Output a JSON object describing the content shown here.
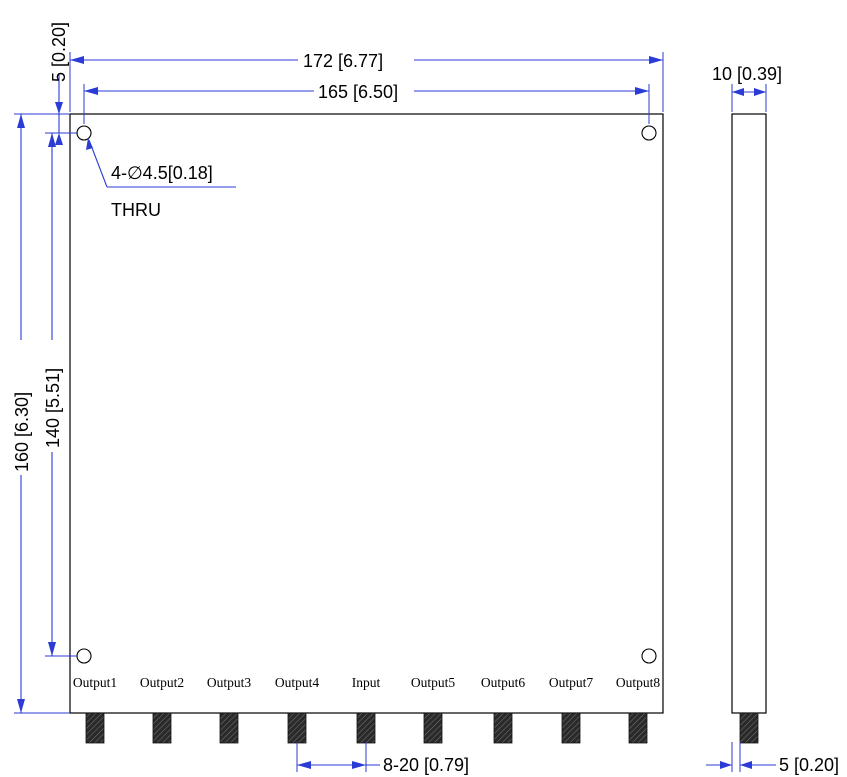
{
  "dimensions": {
    "overall_width": "172 [6.77]",
    "hole_spacing_width": "165 [6.50]",
    "edge_to_hole": "5 [0.20]",
    "overall_height": "160 [6.30]",
    "hole_spacing_height": "140 [5.51]",
    "thickness": "10 [0.39]",
    "connector_pitch": "8-20 [0.79]",
    "side_connector_offset": "5 [0.20]"
  },
  "hole_callout": {
    "size": "4-∅4.5[0.18]",
    "type": "THRU"
  },
  "ports": [
    "Output1",
    "Output2",
    "Output3",
    "Output4",
    "Input",
    "Output5",
    "Output6",
    "Output7",
    "Output8"
  ],
  "colors": {
    "dimension": "#2b3bd6",
    "outline": "#000000",
    "connector": "#3a3a3a"
  }
}
